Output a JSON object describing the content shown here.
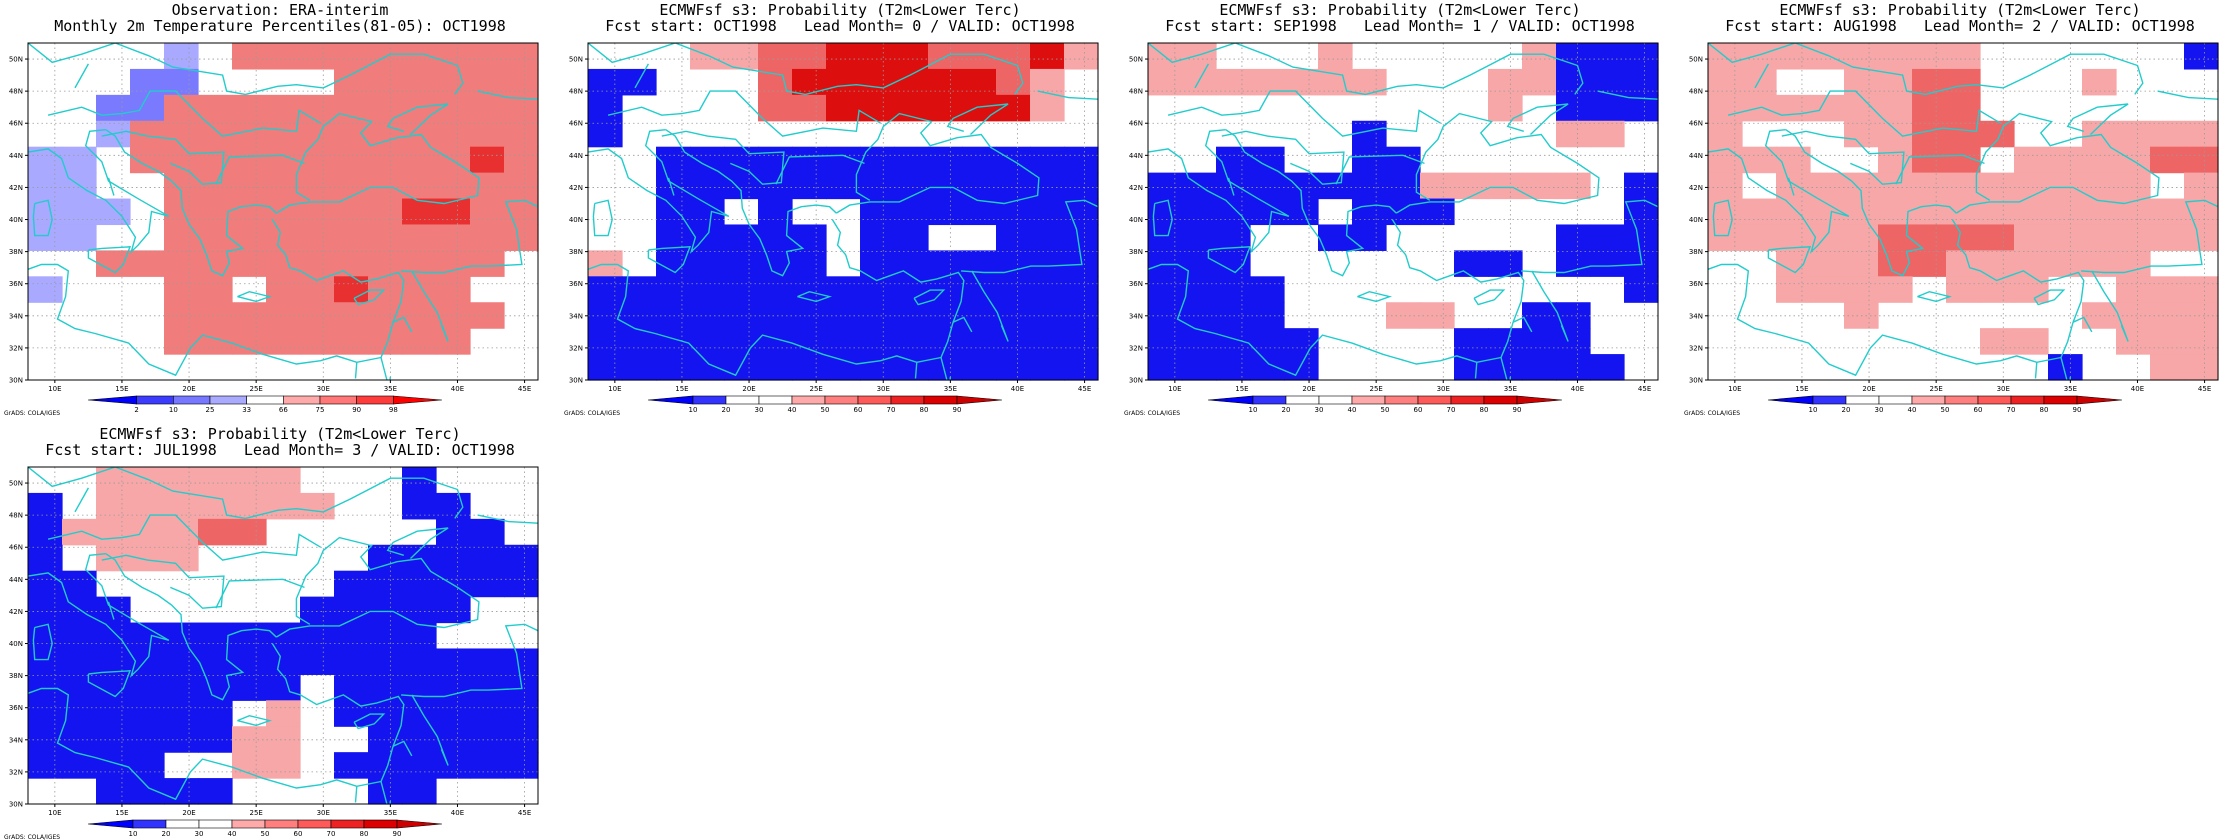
{
  "page": {
    "background": "#ffffff"
  },
  "colorbars": {
    "observation": {
      "labels": [
        "2",
        "10",
        "25",
        "33",
        "66",
        "75",
        "90",
        "98"
      ],
      "colors": [
        "#0000ff",
        "#3c3cff",
        "#7777ff",
        "#aaaaff",
        "#ffffff",
        "#ffaaaa",
        "#ff7777",
        "#ff3c3c",
        "#ff0000"
      ]
    },
    "probability": {
      "labels": [
        "10",
        "20",
        "30",
        "40",
        "50",
        "60",
        "70",
        "80",
        "90"
      ],
      "colors": [
        "#0000ff",
        "#3333ff",
        "#ffffff",
        "#ffffff",
        "#ffaaaa",
        "#ff7f7f",
        "#ff5a5a",
        "#ee2222",
        "#dd0000",
        "#cc0000"
      ]
    }
  },
  "footer_credit": "GrADS: COLA/IGES",
  "map": {
    "lon_range": [
      8,
      46
    ],
    "lat_range": [
      30,
      51
    ],
    "x_ticks": [
      "10E",
      "15E",
      "20E",
      "25E",
      "30E",
      "35E",
      "40E",
      "45E"
    ],
    "y_ticks": [
      "30N",
      "32N",
      "34N",
      "36N",
      "38N",
      "40N",
      "42N",
      "44N",
      "46N",
      "48N",
      "50N"
    ],
    "cell_size_deg": 2.5,
    "coastline_color": "#22cccc"
  },
  "panels": [
    {
      "title_line1": "Observation: ERA-interim",
      "title_line2": "Monthly 2m Temperature Percentiles(81-05): OCT1998",
      "colorbar": "observation",
      "chart_data": {
        "type": "heatmap",
        "title": "Observation: ERA-interim — Monthly 2m Temperature Percentiles(81-05): OCT1998",
        "x_unit": "degrees E",
        "y_unit": "degrees N",
        "value_meaning": "percentile class",
        "rows": [
          "....a.ccccccccc",
          "...bb....cccccc",
          "..bbccccccccccc",
          "..acccccccccccc",
          "aa.ccccccccccdc",
          "aa..ccccccccccc",
          "aaa.cccccccddcc",
          "aa..ccccccccccc",
          "..cccccccccccc.",
          "a...cc.ccdccc..",
          "....cccccccccc.",
          "....ccccccccc..",
          "..............."
        ]
      }
    },
    {
      "title_line1": "ECMWFsf s3: Probability (T2m<Lower Terc)",
      "title_line2": "Fcst start: OCT1998   Lead Month= 0 / VALID: OCT1998",
      "colorbar": "probability",
      "chart_data": {
        "type": "heatmap",
        "title": "ECMWFsf s3: Probability (T2m<Lower Terc) — Fcst start: OCT1998 Lead Month= 0 / VALID: OCT1998",
        "x_unit": "degrees E",
        "y_unit": "degrees N",
        "value_meaning": "probability %",
        "rows": [
          "...bbccdddcccdb",
          "aa...cddddddcb.",
          "a....ccddddddb.",
          "a..............",
          "..aaaaaaaaaaaaa",
          "..aaaaaaaaaaaaa",
          "..aa.a..aaaaaaa",
          "..aaaaa.aa..aaa",
          "b.aaaaa.aaaaaaa",
          "aaaaaaaaaaaaaaa",
          "aaaaaaaaaaaaaaa",
          "aaaaaaaaaaaaaaa",
          "aaaaaaaaaaaaaaa"
        ]
      }
    },
    {
      "title_line1": "ECMWFsf s3: Probability (T2m<Lower Terc)",
      "title_line2": "Fcst start: SEP1998   Lead Month= 1 / VALID: OCT1998",
      "colorbar": "probability",
      "chart_data": {
        "type": "heatmap",
        "title": "ECMWFsf s3: Probability (T2m<Lower Terc) — Fcst start: SEP1998 Lead Month= 1 / VALID: OCT1998",
        "x_unit": "degrees E",
        "y_unit": "degrees N",
        "value_meaning": "probability %",
        "rows": [
          "bb...b.....baaa",
          "bbbbbbb...bbaaa",
          "..........b.aaa",
          "......a.....bb.",
          "..aa..aa.......",
          "aaaaaaaabbbbb.a",
          "aaaaa.aaa.....a",
          "aaa..aa.....aaa",
          "aaa......aa.aaa",
          "aaaa..........a",
          "aaaa...bb..aa..",
          "aaaaa....aaaa..",
          "aaaaa....aaaaa."
        ]
      }
    },
    {
      "title_line1": "ECMWFsf s3: Probability (T2m<Lower Terc)",
      "title_line2": "Fcst start: AUG1998   Lead Month= 2 / VALID: OCT1998",
      "colorbar": "probability",
      "chart_data": {
        "type": "heatmap",
        "title": "ECMWFsf s3: Probability (T2m<Lower Terc) — Fcst start: AUG1998 Lead Month= 2 / VALID: OCT1998",
        "x_unit": "degrees E",
        "y_unit": "degrees N",
        "value_meaning": "probability %",
        "rows": [
          "bbbbbbbb......a",
          "bb..bbcc...b...",
          "bbbbbbcc.......",
          "b...bbccc..bbbb",
          "bbb..bcc.bbbbcc",
          "b.bbbbbbbbbbb.b",
          "bbbbbbbbbbbbbbb",
          "bbbbbccccbbbbbb",
          "..bbbccbbbbbb..",
          "..bbbb.bbb..bbb",
          "....b......bbbb",
          "........bb..bbb",
          "..........a..bb"
        ]
      }
    },
    {
      "title_line1": "ECMWFsf s3: Probability (T2m<Lower Terc)",
      "title_line2": "Fcst start: JUL1998   Lead Month= 3 / VALID: OCT1998",
      "colorbar": "probability",
      "chart_data": {
        "type": "heatmap",
        "title": "ECMWFsf s3: Probability (T2m<Lower Terc) — Fcst start: JUL1998 Lead Month= 3 / VALID: OCT1998",
        "x_unit": "degrees E",
        "y_unit": "degrees N",
        "value_meaning": "probability %",
        "rows": [
          "..bbbbbb...a...",
          "a.bbbbbbb..aa..",
          "abbbbcc.....aa.",
          "a.bbb.....aaaaa",
          "aa.......aaaaaa",
          "aaa.....aaaaa..",
          "aaaaaaaaaaaa...",
          "aaaaaaaaaaaaaaa",
          "aaaaaaaa.aaaaaa",
          "aaaaaa.b.aaaaaa",
          "aaaaaabb..aaaaa",
          "aaaa..bb.aaaaaa",
          "..aaaa....aa..."
        ]
      }
    }
  ]
}
